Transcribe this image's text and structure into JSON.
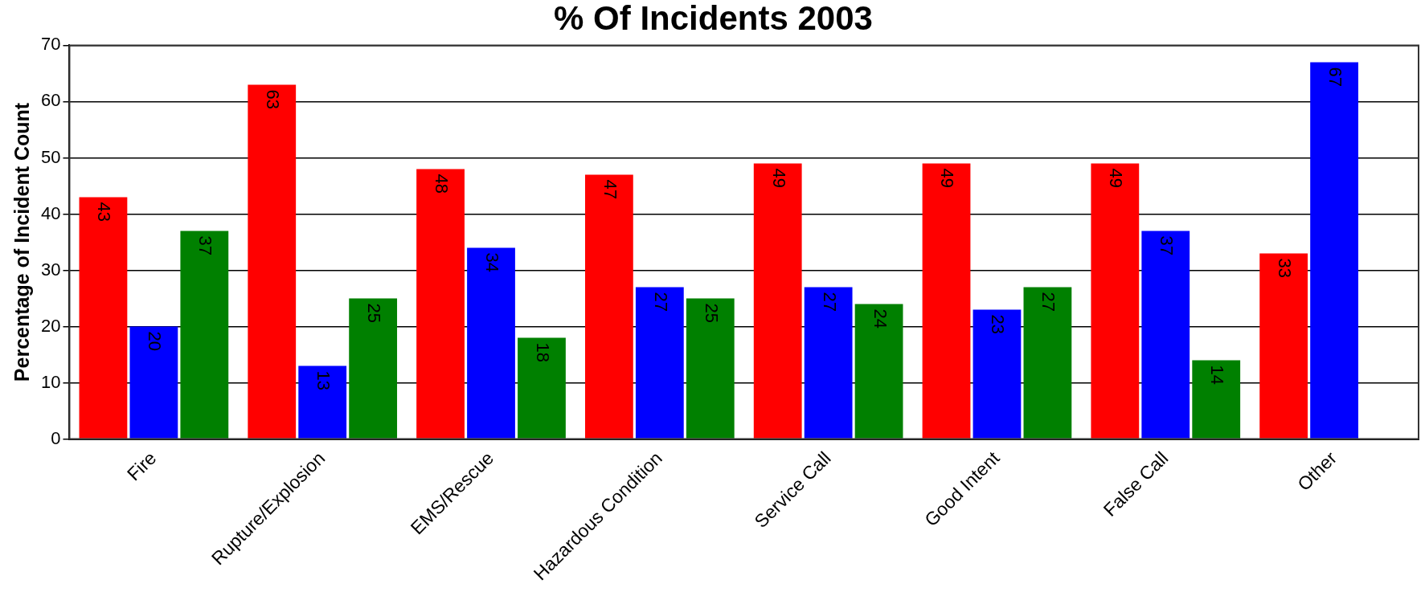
{
  "chart_data": {
    "type": "bar",
    "title": "% Of Incidents 2003",
    "ylabel": "Percentage of Incident Count",
    "categories": [
      "Fire",
      "Rupture/Explosion",
      "EMS/Rescue",
      "Hazardous Condition",
      "Service Call",
      "Good Intent",
      "False Call",
      "Other"
    ],
    "series": [
      {
        "color": "#ff0000",
        "values": [
          43,
          63,
          48,
          47,
          49,
          49,
          49,
          33
        ]
      },
      {
        "color": "#0000ff",
        "values": [
          20,
          13,
          34,
          27,
          27,
          23,
          37,
          67
        ]
      },
      {
        "color": "#008000",
        "values": [
          37,
          25,
          18,
          25,
          24,
          27,
          14,
          null
        ]
      }
    ],
    "ylim": [
      0,
      70
    ],
    "yticks": [
      0,
      10,
      20,
      30,
      40,
      50,
      60,
      70
    ],
    "grid": "y",
    "data_labels": true
  }
}
